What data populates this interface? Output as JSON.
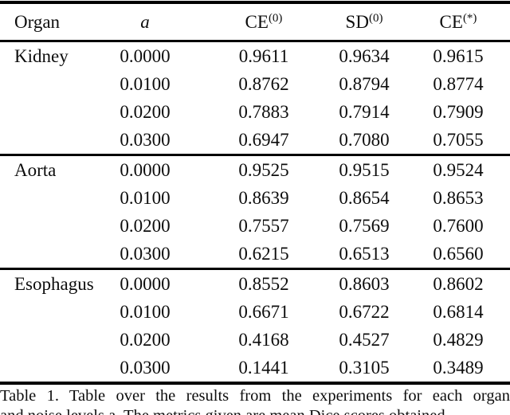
{
  "table": {
    "header": {
      "columns": [
        {
          "base": "Organ",
          "sup": ""
        },
        {
          "base": "a",
          "sup": ""
        },
        {
          "base": "CE",
          "sup": "(0)"
        },
        {
          "base": "SD",
          "sup": "(0)"
        },
        {
          "base": "CE",
          "sup": "(*)"
        }
      ]
    },
    "groups": [
      {
        "organ": "Kidney",
        "rows": [
          {
            "a": "0.0000",
            "ce0": "0.9611",
            "sd0": "0.9634",
            "ce_star": "0.9615"
          },
          {
            "a": "0.0100",
            "ce0": "0.8762",
            "sd0": "0.8794",
            "ce_star": "0.8774"
          },
          {
            "a": "0.0200",
            "ce0": "0.7883",
            "sd0": "0.7914",
            "ce_star": "0.7909"
          },
          {
            "a": "0.0300",
            "ce0": "0.6947",
            "sd0": "0.7080",
            "ce_star": "0.7055"
          }
        ]
      },
      {
        "organ": "Aorta",
        "rows": [
          {
            "a": "0.0000",
            "ce0": "0.9525",
            "sd0": "0.9515",
            "ce_star": "0.9524"
          },
          {
            "a": "0.0100",
            "ce0": "0.8639",
            "sd0": "0.8654",
            "ce_star": "0.8653"
          },
          {
            "a": "0.0200",
            "ce0": "0.7557",
            "sd0": "0.7569",
            "ce_star": "0.7600"
          },
          {
            "a": "0.0300",
            "ce0": "0.6215",
            "sd0": "0.6513",
            "ce_star": "0.6560"
          }
        ]
      },
      {
        "organ": "Esophagus",
        "rows": [
          {
            "a": "0.0000",
            "ce0": "0.8552",
            "sd0": "0.8603",
            "ce_star": "0.8602"
          },
          {
            "a": "0.0100",
            "ce0": "0.6671",
            "sd0": "0.6722",
            "ce_star": "0.6814"
          },
          {
            "a": "0.0200",
            "ce0": "0.4168",
            "sd0": "0.4527",
            "ce_star": "0.4829"
          },
          {
            "a": "0.0300",
            "ce0": "0.1441",
            "sd0": "0.3105",
            "ce_star": "0.3489"
          }
        ]
      }
    ]
  },
  "caption": {
    "line1": "Table 1. Table over the results from the experiments for each organ",
    "line2_clipped": "and noise levels a. The metrics given are mean Dice scores obtained"
  },
  "colors": {
    "text": "#0d0d0d",
    "rule": "#000000",
    "background": "#ffffff"
  }
}
